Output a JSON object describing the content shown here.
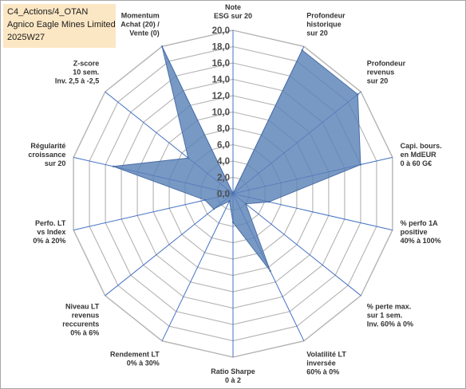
{
  "title_box": {
    "line1": "C4_Actions/4_OTAN",
    "line2": "Agnico Eagle Mines Limited",
    "line3": "2025W27"
  },
  "chart_data": {
    "type": "radar",
    "rmin": 0,
    "rmax": 20,
    "ticks": [
      "0,0",
      "2,0",
      "4,0",
      "6,0",
      "8,0",
      "10,0",
      "12,0",
      "14,0",
      "16,0",
      "18,0",
      "20,0"
    ],
    "axes": [
      [
        "Note",
        "ESG sur 20"
      ],
      [
        "Profondeur",
        "historique",
        "sur 20"
      ],
      [
        "Profondeur",
        "revenus",
        "sur 20"
      ],
      [
        "Capi. bours.",
        "en MdEUR",
        "0 à 60 G€"
      ],
      [
        "% perfo 1A",
        "positive",
        "40% à 100%"
      ],
      [
        "% perte max.",
        "sur 1 sem.",
        "Inv. 60% à 0%"
      ],
      [
        "Volatilité LT",
        "inversée",
        "60% à 0%"
      ],
      [
        "Ratio Sharpe",
        "0 à 2"
      ],
      [
        "Rendement LT",
        "0% à 30%"
      ],
      [
        "Niveau LT",
        "revenus",
        "reccurents",
        "0% à 6%"
      ],
      [
        "Perfo. LT",
        "vs Index",
        "0% à 20%"
      ],
      [
        "Régularité",
        "croissance",
        "sur 20"
      ],
      [
        "Z-score",
        "10 sem.",
        "Inv. 2,5 à -2,5"
      ],
      [
        "Momentum",
        "Achat (20) /",
        "Vente (0)"
      ]
    ],
    "values": [
      0,
      19.5,
      19.5,
      16.0,
      4.5,
      2.0,
      10.5,
      3.5,
      1.0,
      3.0,
      3.5,
      15.0,
      7.0,
      20.0
    ],
    "series_color": "#5b82b8",
    "series_fill_opacity": 0.82,
    "grid_color": "#b3b3b3",
    "spoke_color": "#4472c4"
  }
}
